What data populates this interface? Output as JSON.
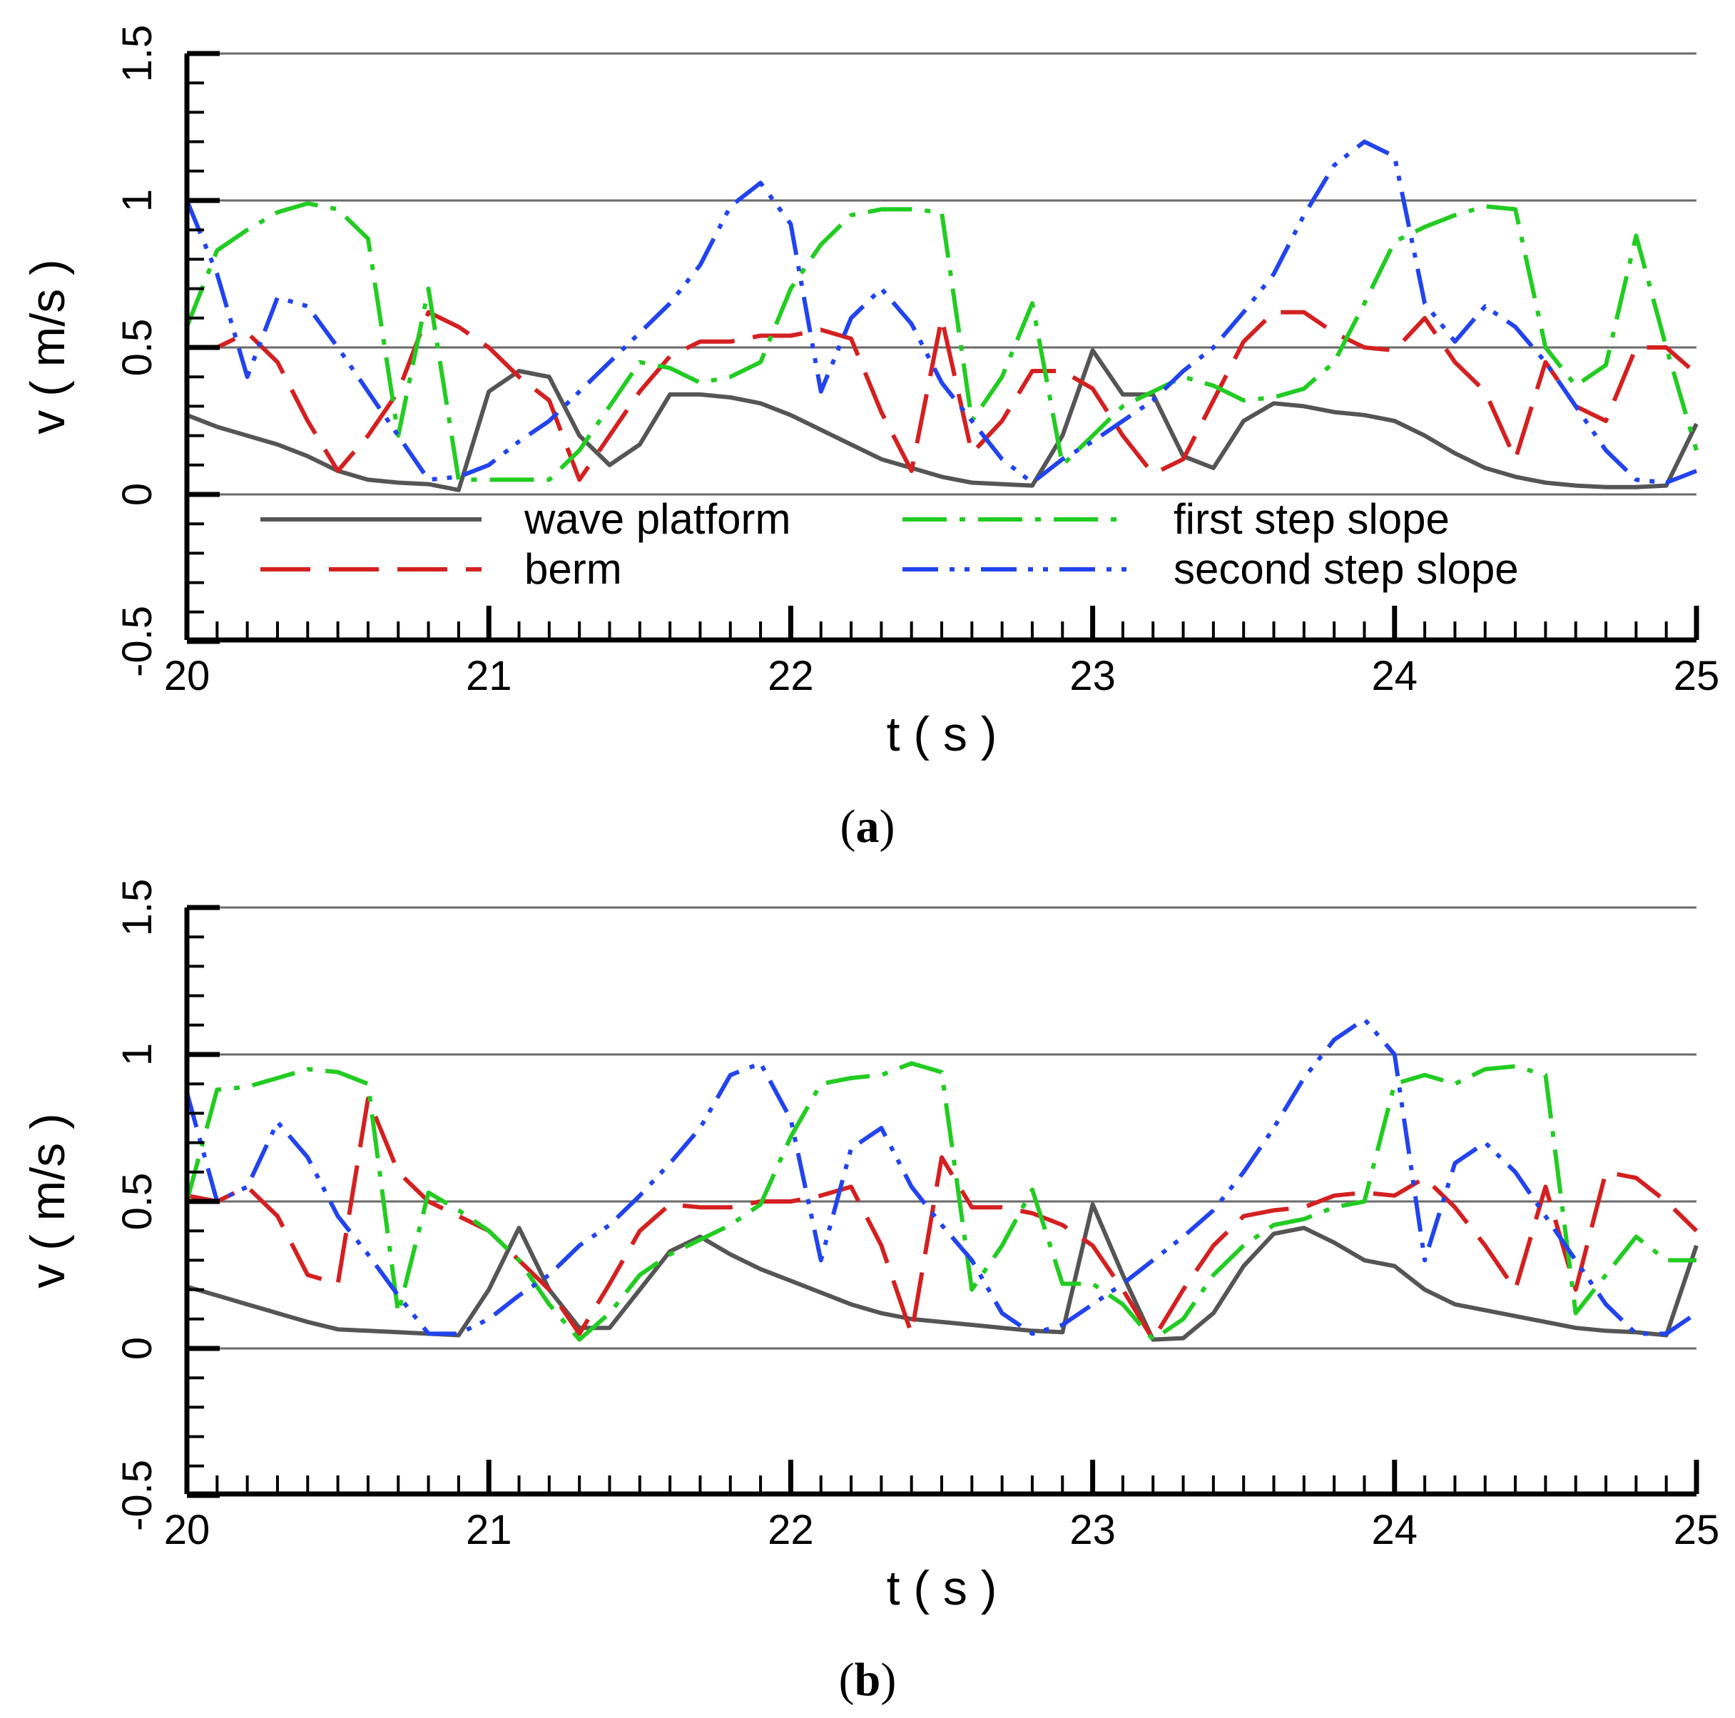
{
  "chart_data": [
    {
      "type": "line",
      "panel_label": "a",
      "xlabel": "t ( s )",
      "ylabel": "v ( m/s )",
      "xlim": [
        20,
        25
      ],
      "ylim": [
        -0.5,
        1.5
      ],
      "xticks": [
        20,
        21,
        22,
        23,
        24,
        25
      ],
      "xtick_labels": [
        "20",
        "21",
        "22",
        "23",
        "24",
        "25"
      ],
      "yticks": [
        -0.5,
        0,
        0.5,
        1,
        1.5
      ],
      "ytick_labels": [
        "-0.5",
        "0",
        "0.5",
        "1",
        "1.5"
      ],
      "grid_y": [
        0,
        0.5,
        1,
        1.5
      ],
      "legend_position": "lower-center",
      "series": [
        {
          "name": "wave platform",
          "color": "#555555",
          "style": "solid",
          "x": [
            20,
            20.1,
            20.2,
            20.3,
            20.4,
            20.5,
            20.6,
            20.7,
            20.8,
            20.9,
            21.0,
            21.1,
            21.2,
            21.3,
            21.4,
            21.5,
            21.6,
            21.7,
            21.8,
            21.9,
            22.0,
            22.1,
            22.2,
            22.3,
            22.4,
            22.5,
            22.6,
            22.7,
            22.8,
            22.9,
            23.0,
            23.1,
            23.2,
            23.3,
            23.4,
            23.5,
            23.6,
            23.7,
            23.8,
            23.9,
            24.0,
            24.1,
            24.2,
            24.3,
            24.4,
            24.5,
            24.6,
            24.7,
            24.8,
            24.9,
            25.0
          ],
          "values": [
            0.27,
            0.23,
            0.2,
            0.17,
            0.13,
            0.08,
            0.05,
            0.04,
            0.035,
            0.015,
            0.35,
            0.42,
            0.4,
            0.2,
            0.1,
            0.17,
            0.34,
            0.34,
            0.33,
            0.31,
            0.27,
            0.22,
            0.17,
            0.12,
            0.09,
            0.06,
            0.04,
            0.035,
            0.03,
            0.2,
            0.49,
            0.34,
            0.34,
            0.13,
            0.09,
            0.25,
            0.31,
            0.3,
            0.28,
            0.27,
            0.25,
            0.2,
            0.14,
            0.09,
            0.06,
            0.04,
            0.03,
            0.025,
            0.025,
            0.03,
            0.24
          ]
        },
        {
          "name": "berm",
          "color": "#d42020",
          "style": "dashed",
          "x": [
            20,
            20.1,
            20.2,
            20.3,
            20.4,
            20.5,
            20.6,
            20.7,
            20.8,
            20.9,
            21.0,
            21.1,
            21.2,
            21.3,
            21.4,
            21.5,
            21.6,
            21.7,
            21.8,
            21.9,
            22.0,
            22.1,
            22.2,
            22.3,
            22.4,
            22.5,
            22.6,
            22.7,
            22.8,
            22.9,
            23.0,
            23.1,
            23.2,
            23.3,
            23.4,
            23.5,
            23.6,
            23.7,
            23.8,
            23.9,
            24.0,
            24.1,
            24.2,
            24.3,
            24.4,
            24.5,
            24.6,
            24.7,
            24.8,
            24.9,
            25.0
          ],
          "values": [
            0.5,
            0.5,
            0.55,
            0.45,
            0.25,
            0.08,
            0.2,
            0.35,
            0.62,
            0.57,
            0.5,
            0.4,
            0.32,
            0.05,
            0.2,
            0.35,
            0.47,
            0.52,
            0.52,
            0.54,
            0.54,
            0.56,
            0.53,
            0.28,
            0.08,
            0.6,
            0.14,
            0.25,
            0.42,
            0.42,
            0.36,
            0.2,
            0.07,
            0.12,
            0.32,
            0.52,
            0.62,
            0.62,
            0.55,
            0.5,
            0.49,
            0.6,
            0.45,
            0.35,
            0.12,
            0.45,
            0.3,
            0.25,
            0.5,
            0.5,
            0.41
          ]
        },
        {
          "name": "first step slope",
          "color": "#22cc22",
          "style": "dashdot",
          "x": [
            20,
            20.1,
            20.2,
            20.3,
            20.4,
            20.5,
            20.6,
            20.7,
            20.8,
            20.9,
            21.0,
            21.1,
            21.2,
            21.3,
            21.4,
            21.5,
            21.6,
            21.7,
            21.8,
            21.9,
            22.0,
            22.1,
            22.2,
            22.3,
            22.4,
            22.5,
            22.6,
            22.7,
            22.8,
            22.9,
            23.0,
            23.1,
            23.2,
            23.3,
            23.4,
            23.5,
            23.6,
            23.7,
            23.8,
            23.9,
            24.0,
            24.1,
            24.2,
            24.3,
            24.4,
            24.5,
            24.6,
            24.7,
            24.8,
            24.9,
            25.0
          ],
          "values": [
            0.57,
            0.83,
            0.9,
            0.96,
            0.99,
            0.97,
            0.87,
            0.2,
            0.7,
            0.05,
            0.05,
            0.05,
            0.05,
            0.15,
            0.3,
            0.45,
            0.43,
            0.38,
            0.4,
            0.45,
            0.7,
            0.85,
            0.95,
            0.97,
            0.97,
            0.96,
            0.25,
            0.4,
            0.65,
            0.1,
            0.2,
            0.3,
            0.35,
            0.4,
            0.37,
            0.32,
            0.33,
            0.36,
            0.45,
            0.65,
            0.86,
            0.91,
            0.95,
            0.98,
            0.97,
            0.5,
            0.37,
            0.44,
            0.88,
            0.5,
            0.15
          ]
        },
        {
          "name": "second step slope",
          "color": "#2244ee",
          "style": "dashdotdot",
          "x": [
            20,
            20.1,
            20.2,
            20.3,
            20.4,
            20.5,
            20.6,
            20.7,
            20.8,
            20.9,
            21.0,
            21.1,
            21.2,
            21.3,
            21.4,
            21.5,
            21.6,
            21.7,
            21.8,
            21.9,
            22.0,
            22.1,
            22.2,
            22.3,
            22.4,
            22.5,
            22.6,
            22.7,
            22.8,
            22.9,
            23.0,
            23.1,
            23.2,
            23.3,
            23.4,
            23.5,
            23.6,
            23.7,
            23.8,
            23.9,
            24.0,
            24.1,
            24.2,
            24.3,
            24.4,
            24.5,
            24.6,
            24.7,
            24.8,
            24.9,
            25.0
          ],
          "values": [
            1.0,
            0.75,
            0.4,
            0.67,
            0.64,
            0.5,
            0.35,
            0.2,
            0.05,
            0.06,
            0.1,
            0.18,
            0.25,
            0.35,
            0.45,
            0.55,
            0.65,
            0.78,
            0.98,
            1.06,
            0.92,
            0.35,
            0.6,
            0.7,
            0.58,
            0.38,
            0.25,
            0.12,
            0.04,
            0.12,
            0.18,
            0.25,
            0.32,
            0.42,
            0.5,
            0.62,
            0.75,
            0.95,
            1.12,
            1.2,
            1.15,
            0.65,
            0.52,
            0.64,
            0.57,
            0.45,
            0.3,
            0.15,
            0.05,
            0.04,
            0.08
          ]
        }
      ],
      "legend": [
        {
          "label": "wave platform",
          "series": 0
        },
        {
          "label": "first step slope",
          "series": 2
        },
        {
          "label": "berm",
          "series": 1
        },
        {
          "label": "second step slope",
          "series": 3
        }
      ]
    },
    {
      "type": "line",
      "panel_label": "b",
      "xlabel": "t ( s )",
      "ylabel": "v ( m/s )",
      "xlim": [
        20,
        25
      ],
      "ylim": [
        -0.5,
        1.5
      ],
      "xticks": [
        20,
        21,
        22,
        23,
        24,
        25
      ],
      "xtick_labels": [
        "20",
        "21",
        "22",
        "23",
        "24",
        "25"
      ],
      "yticks": [
        -0.5,
        0,
        0.5,
        1,
        1.5
      ],
      "ytick_labels": [
        "-0.5",
        "0",
        "0.5",
        "1",
        "1.5"
      ],
      "grid_y": [
        0,
        0.5,
        1,
        1.5
      ],
      "series": [
        {
          "name": "wave platform",
          "color": "#555555",
          "style": "solid",
          "x": [
            20,
            20.1,
            20.2,
            20.3,
            20.4,
            20.5,
            20.6,
            20.7,
            20.8,
            20.9,
            21.0,
            21.1,
            21.2,
            21.3,
            21.4,
            21.5,
            21.6,
            21.7,
            21.8,
            21.9,
            22.0,
            22.1,
            22.2,
            22.3,
            22.4,
            22.5,
            22.6,
            22.7,
            22.8,
            22.9,
            23.0,
            23.1,
            23.2,
            23.3,
            23.4,
            23.5,
            23.6,
            23.7,
            23.8,
            23.9,
            24.0,
            24.1,
            24.2,
            24.3,
            24.4,
            24.5,
            24.6,
            24.7,
            24.8,
            24.9,
            25.0
          ],
          "values": [
            0.21,
            0.18,
            0.15,
            0.12,
            0.09,
            0.065,
            0.06,
            0.055,
            0.05,
            0.045,
            0.2,
            0.41,
            0.2,
            0.07,
            0.07,
            0.2,
            0.33,
            0.38,
            0.32,
            0.27,
            0.23,
            0.19,
            0.15,
            0.12,
            0.1,
            0.09,
            0.08,
            0.07,
            0.06,
            0.055,
            0.49,
            0.25,
            0.03,
            0.035,
            0.12,
            0.28,
            0.39,
            0.41,
            0.36,
            0.3,
            0.28,
            0.2,
            0.15,
            0.13,
            0.11,
            0.09,
            0.07,
            0.06,
            0.055,
            0.045,
            0.35
          ]
        },
        {
          "name": "berm",
          "color": "#d42020",
          "style": "dashed",
          "x": [
            20,
            20.1,
            20.2,
            20.3,
            20.4,
            20.5,
            20.6,
            20.7,
            20.8,
            20.9,
            21.0,
            21.1,
            21.2,
            21.3,
            21.4,
            21.5,
            21.6,
            21.7,
            21.8,
            21.9,
            22.0,
            22.1,
            22.2,
            22.3,
            22.4,
            22.5,
            22.6,
            22.7,
            22.8,
            22.9,
            23.0,
            23.1,
            23.2,
            23.3,
            23.4,
            23.5,
            23.6,
            23.7,
            23.8,
            23.9,
            24.0,
            24.1,
            24.2,
            24.3,
            24.4,
            24.5,
            24.6,
            24.7,
            24.8,
            24.9,
            25.0
          ],
          "values": [
            0.52,
            0.5,
            0.55,
            0.45,
            0.25,
            0.22,
            0.85,
            0.6,
            0.5,
            0.45,
            0.4,
            0.3,
            0.2,
            0.05,
            0.22,
            0.4,
            0.49,
            0.48,
            0.48,
            0.5,
            0.5,
            0.52,
            0.55,
            0.35,
            0.05,
            0.65,
            0.48,
            0.48,
            0.46,
            0.42,
            0.35,
            0.2,
            0.03,
            0.2,
            0.35,
            0.45,
            0.47,
            0.48,
            0.52,
            0.53,
            0.52,
            0.58,
            0.48,
            0.35,
            0.2,
            0.55,
            0.2,
            0.6,
            0.58,
            0.5,
            0.4
          ]
        },
        {
          "name": "first step slope",
          "color": "#22cc22",
          "style": "dashdot",
          "x": [
            20,
            20.1,
            20.2,
            20.3,
            20.4,
            20.5,
            20.6,
            20.7,
            20.8,
            20.9,
            21.0,
            21.1,
            21.2,
            21.3,
            21.4,
            21.5,
            21.6,
            21.7,
            21.8,
            21.9,
            22.0,
            22.1,
            22.2,
            22.3,
            22.4,
            22.5,
            22.6,
            22.7,
            22.8,
            22.9,
            23.0,
            23.1,
            23.2,
            23.3,
            23.4,
            23.5,
            23.6,
            23.7,
            23.8,
            23.9,
            24.0,
            24.1,
            24.2,
            24.3,
            24.4,
            24.5,
            24.6,
            24.7,
            24.8,
            24.9,
            25.0
          ],
          "values": [
            0.5,
            0.88,
            0.89,
            0.92,
            0.95,
            0.94,
            0.9,
            0.12,
            0.53,
            0.47,
            0.4,
            0.3,
            0.15,
            0.03,
            0.12,
            0.25,
            0.32,
            0.37,
            0.42,
            0.49,
            0.72,
            0.9,
            0.92,
            0.93,
            0.97,
            0.94,
            0.2,
            0.35,
            0.54,
            0.22,
            0.22,
            0.15,
            0.03,
            0.1,
            0.25,
            0.35,
            0.42,
            0.44,
            0.48,
            0.5,
            0.9,
            0.93,
            0.9,
            0.95,
            0.96,
            0.93,
            0.12,
            0.25,
            0.38,
            0.3,
            0.3
          ]
        },
        {
          "name": "second step slope",
          "color": "#2244ee",
          "style": "dashdotdot",
          "x": [
            20,
            20.1,
            20.2,
            20.3,
            20.4,
            20.5,
            20.6,
            20.7,
            20.8,
            20.9,
            21.0,
            21.1,
            21.2,
            21.3,
            21.4,
            21.5,
            21.6,
            21.7,
            21.8,
            21.9,
            22.0,
            22.1,
            22.2,
            22.3,
            22.4,
            22.5,
            22.6,
            22.7,
            22.8,
            22.9,
            23.0,
            23.1,
            23.2,
            23.3,
            23.4,
            23.5,
            23.6,
            23.7,
            23.8,
            23.9,
            24.0,
            24.1,
            24.2,
            24.3,
            24.4,
            24.5,
            24.6,
            24.7,
            24.8,
            24.9,
            25.0
          ],
          "values": [
            0.87,
            0.5,
            0.55,
            0.77,
            0.65,
            0.45,
            0.32,
            0.18,
            0.05,
            0.05,
            0.1,
            0.18,
            0.25,
            0.35,
            0.42,
            0.52,
            0.63,
            0.75,
            0.93,
            0.97,
            0.78,
            0.3,
            0.68,
            0.75,
            0.55,
            0.42,
            0.3,
            0.12,
            0.05,
            0.08,
            0.15,
            0.22,
            0.3,
            0.38,
            0.47,
            0.6,
            0.75,
            0.92,
            1.05,
            1.12,
            1.0,
            0.3,
            0.63,
            0.7,
            0.6,
            0.45,
            0.3,
            0.15,
            0.05,
            0.05,
            0.12
          ]
        }
      ]
    }
  ]
}
